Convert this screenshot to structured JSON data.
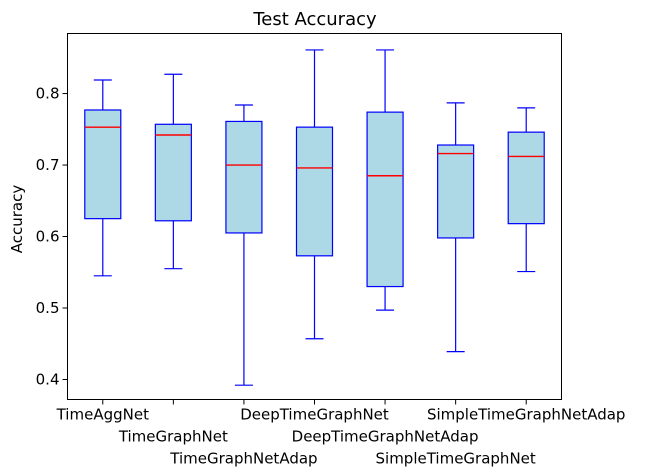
{
  "chart_data": {
    "type": "box",
    "title": "Test Accuracy",
    "xlabel": "",
    "ylabel": "Accuracy",
    "ylim": [
      0.372,
      0.884
    ],
    "yticks": [
      0.4,
      0.5,
      0.6,
      0.7,
      0.8
    ],
    "ytick_labels": [
      "0.4",
      "0.5",
      "0.6",
      "0.7",
      "0.8"
    ],
    "grid": false,
    "colors": {
      "box_fill": "#add8e6",
      "box_edge": "#0000ff",
      "median": "#ff0000"
    },
    "categories": [
      "TimeAggNet",
      "TimeGraphNet",
      "TimeGraphNetAdap",
      "DeepTimeGraphNet",
      "DeepTimeGraphNetAdap",
      "SimpleTimeGraphNet",
      "SimpleTimeGraphNetAdap"
    ],
    "boxes": [
      {
        "name": "TimeAggNet",
        "whisker_low": 0.545,
        "q1": 0.625,
        "median": 0.753,
        "q3": 0.777,
        "whisker_high": 0.819
      },
      {
        "name": "TimeGraphNet",
        "whisker_low": 0.555,
        "q1": 0.622,
        "median": 0.742,
        "q3": 0.757,
        "whisker_high": 0.827
      },
      {
        "name": "TimeGraphNetAdap",
        "whisker_low": 0.392,
        "q1": 0.605,
        "median": 0.7,
        "q3": 0.761,
        "whisker_high": 0.784
      },
      {
        "name": "DeepTimeGraphNet",
        "whisker_low": 0.457,
        "q1": 0.573,
        "median": 0.696,
        "q3": 0.753,
        "whisker_high": 0.861
      },
      {
        "name": "DeepTimeGraphNetAdap",
        "whisker_low": 0.497,
        "q1": 0.53,
        "median": 0.685,
        "q3": 0.774,
        "whisker_high": 0.861
      },
      {
        "name": "SimpleTimeGraphNet",
        "whisker_low": 0.439,
        "q1": 0.598,
        "median": 0.716,
        "q3": 0.728,
        "whisker_high": 0.787
      },
      {
        "name": "SimpleTimeGraphNetAdap",
        "whisker_low": 0.551,
        "q1": 0.618,
        "median": 0.712,
        "q3": 0.746,
        "whisker_high": 0.78
      }
    ]
  }
}
